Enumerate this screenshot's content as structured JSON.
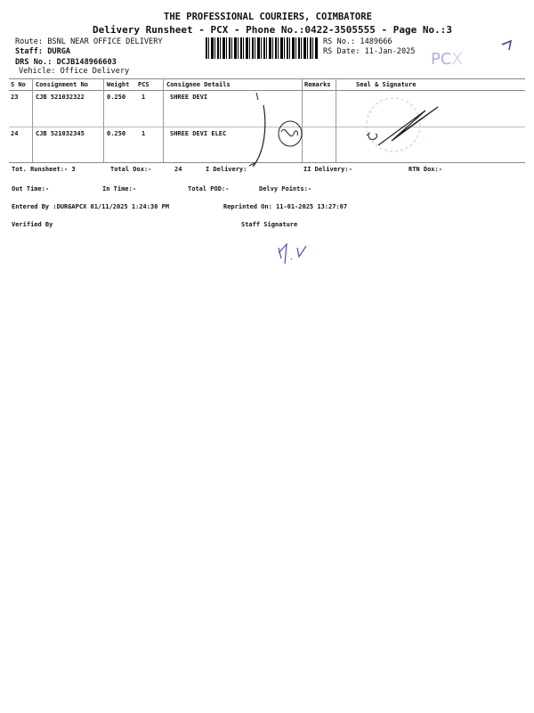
{
  "header": {
    "company": "THE PROFESSIONAL COURIERS, COIMBATORE",
    "subtitle": "Delivery Runsheet - PCX - Phone No.:0422-3505555 - Page No.:3",
    "route": "Route: BSNL NEAR OFFICE DELIVERY",
    "staff": "Staff: DURGA",
    "drs_no": "DRS No.: DCJB148966603",
    "vehicle": "Vehicle: Office Delivery",
    "rs_no": "RS No.: 1489666",
    "rs_date": "RS Date: 11-Jan-2025",
    "stamp_text": "PCX"
  },
  "table": {
    "columns": [
      "S No",
      "Consignment No",
      "Weight",
      "PCS",
      "Consignee Details",
      "Remarks",
      "Seal & Signature"
    ],
    "rows": [
      {
        "sno": "23",
        "consignment": "CJB 521032322",
        "weight": "0.250",
        "pcs": "1",
        "consignee": "SHREE DEVI",
        "remarks": ""
      },
      {
        "sno": "24",
        "consignment": "CJB 521032345",
        "weight": "0.250",
        "pcs": "1",
        "consignee": "SHREE DEVI ELEC",
        "remarks": ""
      }
    ]
  },
  "summary": {
    "tot_runsheet": "Tot. Runsheet:- 3",
    "total_dox": "Total Dox:-",
    "total_dox_value": "24",
    "i_delivery": "I Delivery:",
    "ii_delivery": "II Delivery:-",
    "rtn_dox": "RTN Dox:-",
    "out_time": "Out Time:-",
    "in_time": "In Time:-",
    "total_pod": "Total POD:-",
    "delvy_points": "Delvy Points:-",
    "entered_by": "Entered By :DURGAPCX 01/11/2025 1:24:30 PM",
    "reprinted_on": "Reprinted On: 11-01-2025 13:27:07",
    "verified_by": "Verified By",
    "staff_signature": "Staff Signature"
  }
}
